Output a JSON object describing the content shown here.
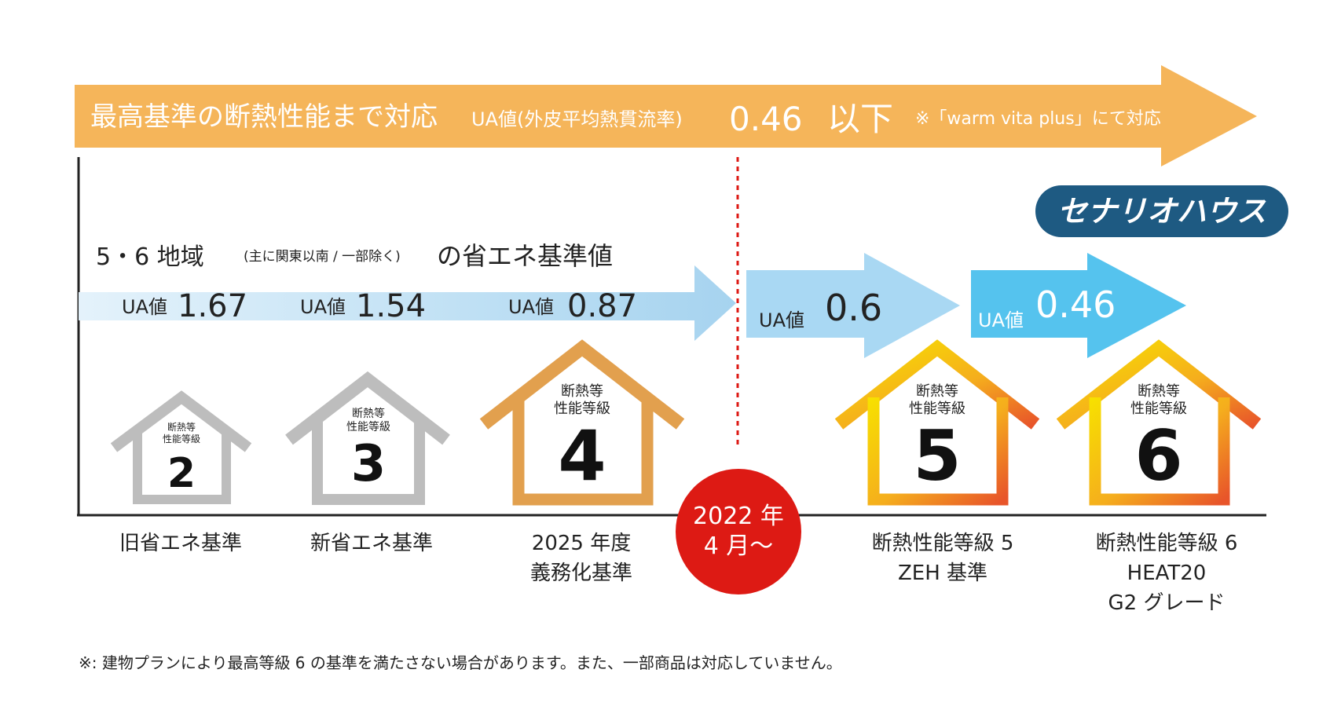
{
  "top_banner": {
    "headline": "最高基準の断熱性能まで対応",
    "ua_label": "UA値(外皮平均熱貫流率)",
    "ua_value": "0.46",
    "ua_suffix": "以下",
    "note": "※「warm vita plus」にて対応",
    "color": "#F5B55A"
  },
  "region_label": {
    "main": "5・6 地域",
    "paren": "(主に関東以南 / 一部除く)",
    "tail": "の省エネ基準値"
  },
  "ua_values": [
    {
      "label": "UA値",
      "value": "1.67"
    },
    {
      "label": "UA値",
      "value": "1.54"
    },
    {
      "label": "UA値",
      "value": "0.87"
    },
    {
      "label": "UA値",
      "value": "0.6"
    },
    {
      "label": "UA値",
      "value": "0.46"
    }
  ],
  "brand_badge": {
    "text": "セナリオハウス",
    "color": "#1E5A82"
  },
  "houses": [
    {
      "caption_top": "断熱等",
      "caption_bottom": "性能等級",
      "grade": "2",
      "color": "#BDBDBD"
    },
    {
      "caption_top": "断熱等",
      "caption_bottom": "性能等級",
      "grade": "3",
      "color": "#BDBDBD"
    },
    {
      "caption_top": "断熱等",
      "caption_bottom": "性能等級",
      "grade": "4",
      "color": "#E2A04E"
    },
    {
      "caption_top": "断熱等",
      "caption_bottom": "性能等級",
      "grade": "5",
      "color": "#F2B21D"
    },
    {
      "caption_top": "断熱等",
      "caption_bottom": "性能等級",
      "grade": "6",
      "color": "#F2B21D"
    }
  ],
  "milestone": {
    "line1": "2022 年",
    "line2": "4 月〜",
    "color": "#DD1A14"
  },
  "standards": [
    {
      "lines": [
        "旧省エネ基準"
      ]
    },
    {
      "lines": [
        "新省エネ基準"
      ]
    },
    {
      "lines": [
        "2025 年度",
        "義務化基準"
      ]
    },
    {
      "lines": [
        "断熱性能等級 5",
        "ZEH 基準"
      ]
    },
    {
      "lines": [
        "断熱性能等級 6",
        "HEAT20",
        "G2 グレード"
      ]
    }
  ],
  "footnote": "※: 建物プランにより最高等級 6 の基準を満たさない場合があります。また、一部商品は対応していません。"
}
